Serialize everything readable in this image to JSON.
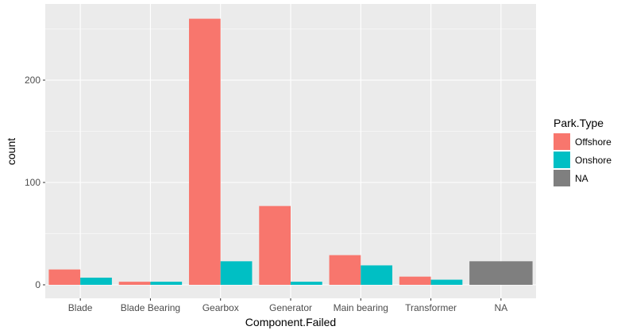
{
  "chart_data": {
    "type": "bar",
    "xlabel": "Component.Failed",
    "ylabel": "count",
    "ylim": [
      0,
      260
    ],
    "y_ticks": [
      0,
      100,
      200
    ],
    "categories": [
      "Blade",
      "Blade Bearing",
      "Gearbox",
      "Generator",
      "Main bearing",
      "Transformer",
      "NA"
    ],
    "series": [
      {
        "name": "Offshore",
        "color": "#F8766D",
        "values": [
          15,
          3,
          260,
          77,
          29,
          8,
          null
        ]
      },
      {
        "name": "Onshore",
        "color": "#00BFC4",
        "values": [
          7,
          3,
          23,
          3,
          19,
          5,
          null
        ]
      },
      {
        "name": "NA",
        "color": "#7F7F7F",
        "values": [
          null,
          null,
          null,
          null,
          null,
          null,
          23
        ]
      }
    ],
    "legend": {
      "title": "Park.Type",
      "position": "right"
    },
    "grid": true,
    "panel_background": "#EBEBEB"
  }
}
